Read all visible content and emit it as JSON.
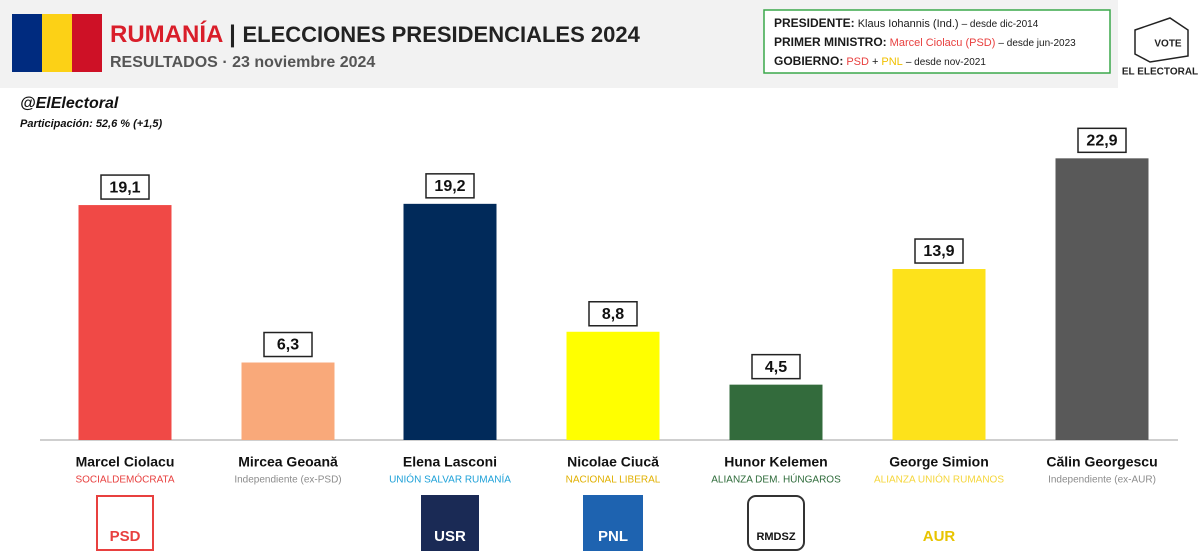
{
  "header": {
    "country": "RUMANÍA",
    "separator": "|",
    "title": "ELECCIONES PRESIDENCIALES 2024",
    "results": "RESULTADOS",
    "dot": "·",
    "date": "23 noviembre 2024"
  },
  "info": {
    "rows": [
      [
        {
          "text": "PRESIDENTE:",
          "color": "#1a1a1a"
        },
        {
          "text": "Klaus Iohannis (Ind.)",
          "color": "#1a1a1a"
        },
        {
          "text": "– desde dic-2014",
          "color": "#1a1a1a"
        }
      ],
      [
        {
          "text": "PRIMER MINISTRO:",
          "color": "#1a1a1a"
        },
        {
          "text": "Marcel Ciolacu (PSD)",
          "color": "#e8403f"
        },
        {
          "text": "– desde jun-2023",
          "color": "#1a1a1a"
        }
      ],
      [
        {
          "text": "GOBIERNO:",
          "color": "#1a1a1a"
        },
        {
          "text": "PSD",
          "color": "#e8403f"
        },
        {
          "text": "+",
          "color": "#1a1a1a"
        },
        {
          "text": "PNL",
          "color": "#f0c000"
        },
        {
          "text": "– desde nov-2021",
          "color": "#1a1a1a"
        }
      ]
    ]
  },
  "brand": {
    "vote": "VOTE",
    "name": "EL ELECTORAL"
  },
  "handle": "@ElElectoral",
  "turnout": {
    "label": "Participación:",
    "value": "52,6 % (+1,5)"
  },
  "chart_data": {
    "type": "bar",
    "categories": [
      "Marcel Ciolacu",
      "Mircea Geoană",
      "Elena Lasconi",
      "Nicolae Ciucă",
      "Hunor Kelemen",
      "George Simion",
      "Călin Georgescu"
    ],
    "values": [
      19.1,
      6.3,
      19.2,
      8.8,
      4.5,
      13.9,
      22.9
    ],
    "value_labels": [
      "19,1",
      "6,3",
      "19,2",
      "8,8",
      "4,5",
      "13,9",
      "22,9"
    ],
    "colors": [
      "#f04946",
      "#f9a97a",
      "#012a5a",
      "#ffff00",
      "#336b3c",
      "#fde21b",
      "#595959"
    ],
    "parties": [
      "SOCIALDEMÓCRATA",
      "Independiente (ex-PSD)",
      "UNIÓN SALVAR RUMANÍA",
      "NACIONAL LIBERAL",
      "ALIANZA DEM. HÚNGAROS",
      "ALIANZA UNIÓN RUMANOS",
      "Independiente (ex-AUR)"
    ],
    "party_colors": [
      "#e8403f",
      "#8c8c8c",
      "#1ea1d8",
      "#e0b000",
      "#2e6b3a",
      "#f5d63b",
      "#8c8c8c"
    ],
    "logos": [
      "PSD",
      null,
      "USR",
      "PNL",
      "RMDSZ",
      "AUR",
      null
    ]
  }
}
